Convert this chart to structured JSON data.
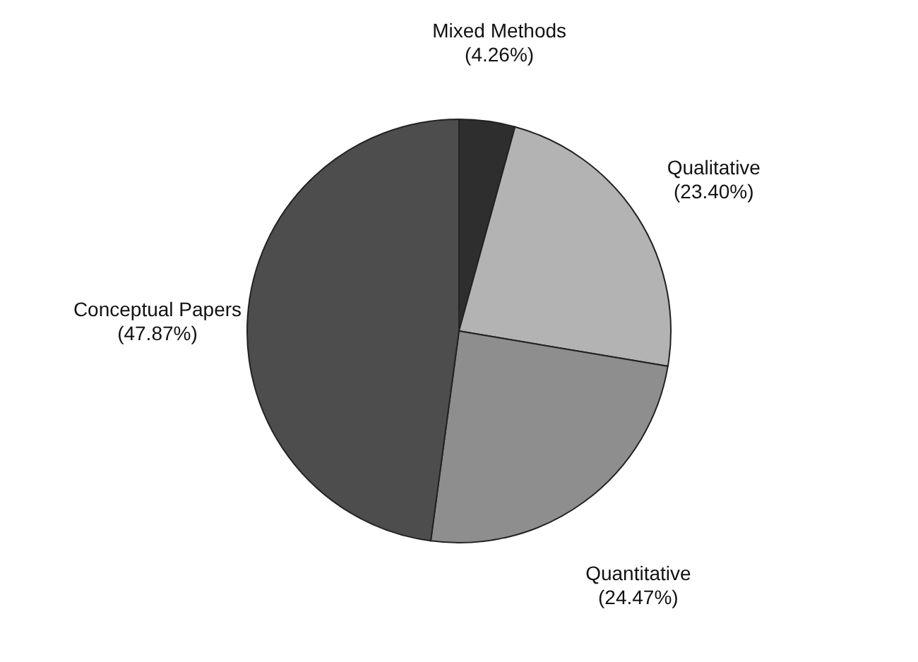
{
  "chart_data": {
    "type": "pie",
    "categories": [
      "Mixed Methods",
      "Qualitative",
      "Quantitative",
      "Conceptual Papers"
    ],
    "values": [
      4.26,
      23.4,
      24.47,
      47.87
    ],
    "value_labels": [
      "(4.26%)",
      "(23.40%)",
      "(24.47%)",
      "(47.87%)"
    ],
    "colors": [
      "#2e2e2e",
      "#b3b3b3",
      "#8e8e8e",
      "#4d4d4d"
    ]
  }
}
